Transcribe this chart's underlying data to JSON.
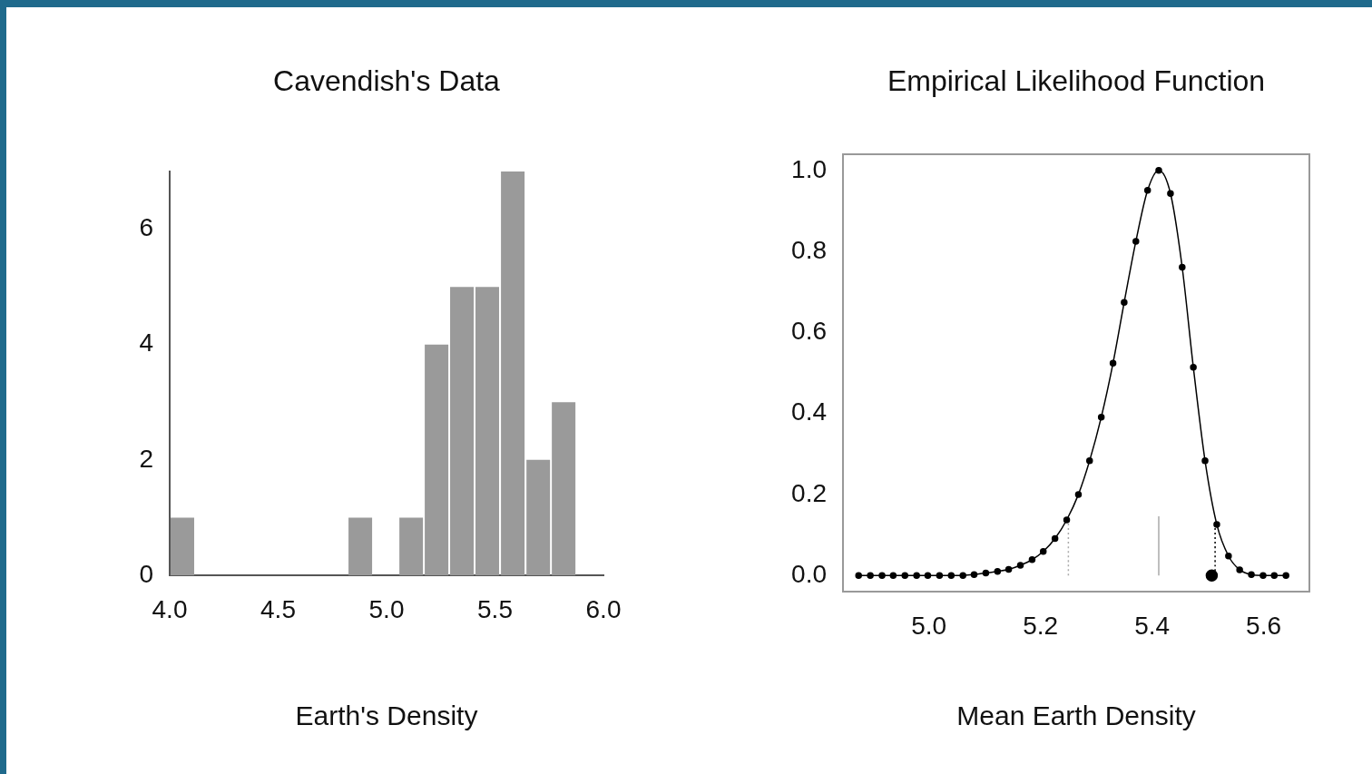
{
  "chart_data": [
    {
      "type": "histogram",
      "title": "Cavendish's Data",
      "xlabel": "Earth's Density",
      "bins": [
        4.0,
        4.117,
        4.234,
        4.352,
        4.469,
        4.586,
        4.703,
        4.82,
        4.938,
        5.055,
        5.172,
        5.289,
        5.406,
        5.523,
        5.641,
        5.758,
        5.875
      ],
      "values": [
        1,
        0,
        0,
        0,
        0,
        0,
        0,
        1,
        0,
        1,
        4,
        5,
        5,
        7,
        2,
        3
      ],
      "color": "#9a9a9a",
      "xlim": [
        4.0,
        6.0
      ],
      "xticks": [
        {
          "value": 4.0,
          "label": "4.0"
        },
        {
          "value": 4.5,
          "label": "4.5"
        },
        {
          "value": 5.0,
          "label": "5.0"
        },
        {
          "value": 5.5,
          "label": "5.5"
        },
        {
          "value": 6.0,
          "label": "6.0"
        }
      ],
      "ylim": [
        0,
        7
      ],
      "yticks": [
        0,
        2,
        4,
        6
      ],
      "grid": false,
      "legend": false
    },
    {
      "type": "line",
      "title": "Empirical Likelihood Function",
      "xlabel": "Mean Earth Density",
      "x": [
        4.874,
        4.895,
        4.916,
        4.936,
        4.957,
        4.978,
        4.998,
        5.019,
        5.04,
        5.061,
        5.081,
        5.102,
        5.123,
        5.143,
        5.164,
        5.185,
        5.205,
        5.226,
        5.247,
        5.268,
        5.288,
        5.309,
        5.33,
        5.35,
        5.371,
        5.392,
        5.412,
        5.433,
        5.454,
        5.474,
        5.495,
        5.516,
        5.537,
        5.557,
        5.578,
        5.599,
        5.619,
        5.64
      ],
      "series": [
        {
          "color": "#000000",
          "marker": "circle",
          "values": [
            0,
            0,
            0,
            0,
            0,
            0,
            0,
            0,
            0,
            0,
            0.002,
            0.006,
            0.01,
            0.015,
            0.025,
            0.039,
            0.059,
            0.091,
            0.137,
            0.2,
            0.283,
            0.391,
            0.524,
            0.674,
            0.825,
            0.951,
            1.0,
            0.943,
            0.761,
            0.514,
            0.283,
            0.126,
            0.048,
            0.014,
            0.002,
            0,
            0,
            0
          ]
        },
        {
          "type": "line",
          "x": [
            5.25,
            5.25
          ],
          "values": [
            0,
            0.14
          ],
          "color": "#aaaaaa",
          "line_style": "dotted",
          "marker": "none"
        },
        {
          "type": "line",
          "x": [
            5.412,
            5.412
          ],
          "values": [
            0,
            0.146
          ],
          "color": "#aaaaaa",
          "line_style": "solid",
          "marker": "none"
        },
        {
          "type": "line",
          "x": [
            5.513,
            5.513
          ],
          "values": [
            0,
            0.13
          ],
          "color": "#000000",
          "line_style": "dotted",
          "marker": "none"
        },
        {
          "type": "scatter",
          "x": [
            5.507
          ],
          "values": [
            0
          ],
          "color": "#000000",
          "marker": "circle"
        }
      ],
      "xlim": [
        4.846,
        5.682
      ],
      "xticks": [
        {
          "value": 5.0,
          "label": "5.0"
        },
        {
          "value": 5.2,
          "label": "5.2"
        },
        {
          "value": 5.4,
          "label": "5.4"
        },
        {
          "value": 5.6,
          "label": "5.6"
        }
      ],
      "ylim": [
        -0.04,
        1.04
      ],
      "yticks": [
        {
          "value": 0,
          "label": "0.0"
        },
        {
          "value": 0.2,
          "label": "0.2"
        },
        {
          "value": 0.4,
          "label": "0.4"
        },
        {
          "value": 0.6,
          "label": "0.6"
        },
        {
          "value": 0.8,
          "label": "0.8"
        },
        {
          "value": 1.0,
          "label": "1.0"
        }
      ],
      "grid": false,
      "legend": false
    }
  ]
}
